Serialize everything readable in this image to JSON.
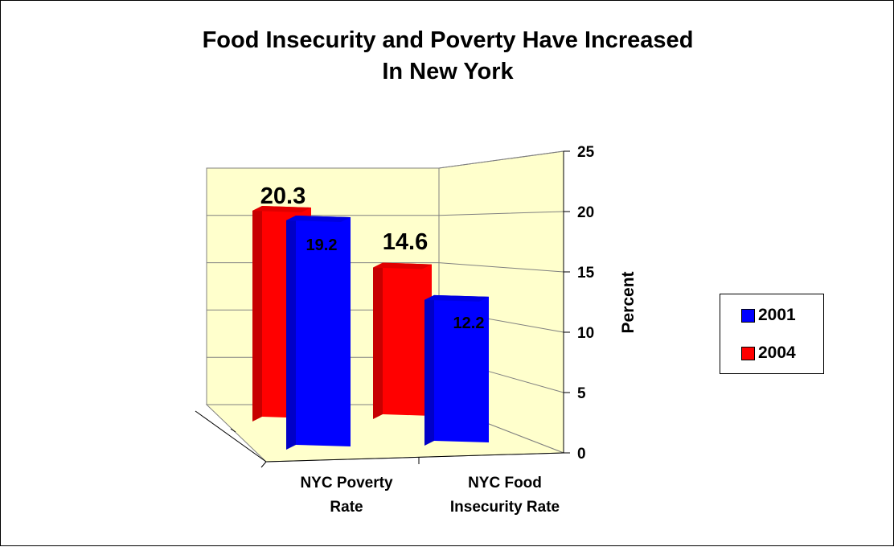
{
  "chart_data": {
    "type": "bar",
    "title": "Food Insecurity and Poverty Have Increased In New York",
    "title_lines": [
      "Food Insecurity and Poverty Have Increased",
      "In New York"
    ],
    "categories": [
      [
        "NYC Poverty",
        "Rate"
      ],
      [
        "NYC Food",
        "Insecurity Rate"
      ]
    ],
    "series": [
      {
        "name": "2001",
        "color": "#0000ff",
        "values": [
          19.2,
          12.2
        ],
        "value_labels": [
          "19.2",
          "12.2"
        ]
      },
      {
        "name": "2004",
        "color": "#ff0000",
        "values": [
          20.3,
          14.6
        ],
        "value_labels": [
          "20.3",
          "14.6"
        ]
      }
    ],
    "ylabel": "Percent",
    "ylim": [
      0,
      25
    ],
    "yticks": [
      0,
      5,
      10,
      15,
      20,
      25
    ],
    "grid": true,
    "legend_position": "right",
    "wall_color": "#ffffcc"
  }
}
